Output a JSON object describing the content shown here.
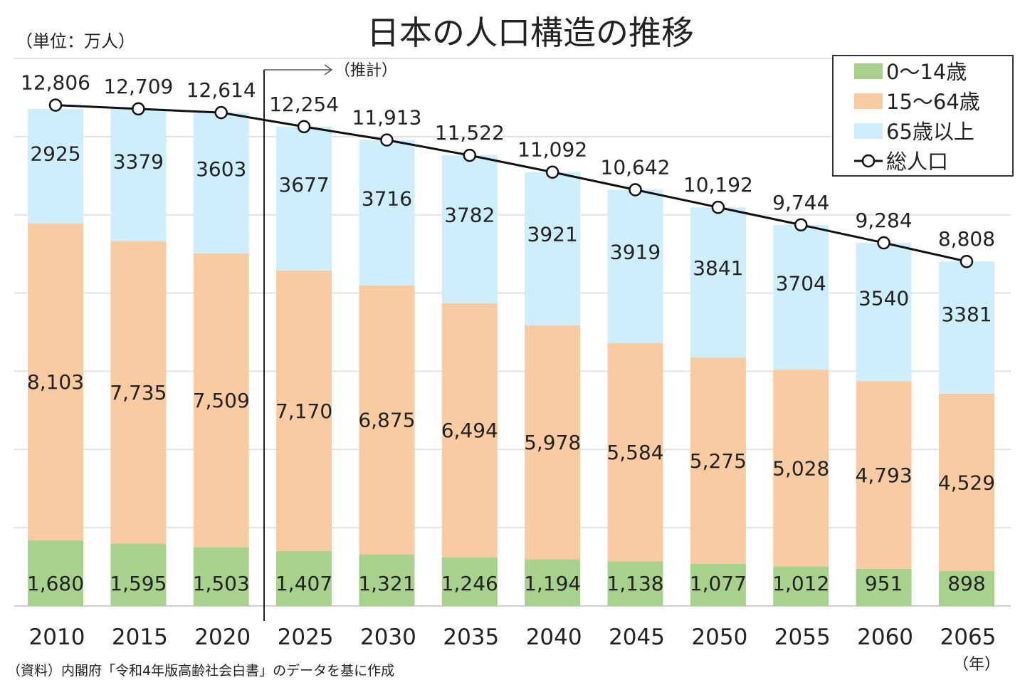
{
  "chart_data": {
    "type": "bar",
    "stacked": true,
    "title": "日本の人口構造の推移",
    "unit_label": "（単位：万人）",
    "projection_label": "（推計）",
    "projection_start": "2025",
    "xlabel": "（年）",
    "ylabel": "",
    "ylim": [
      0,
      14000
    ],
    "grid": true,
    "legend_position": "top-right",
    "categories": [
      "2010",
      "2015",
      "2020",
      "2025",
      "2030",
      "2035",
      "2040",
      "2045",
      "2050",
      "2055",
      "2060",
      "2065"
    ],
    "series": [
      {
        "name": "0～14歳",
        "color": "#a9d18e",
        "values": [
          1680,
          1595,
          1503,
          1407,
          1321,
          1246,
          1194,
          1138,
          1077,
          1012,
          951,
          898
        ],
        "labels": [
          "1,680",
          "1,595",
          "1,503",
          "1,407",
          "1,321",
          "1,246",
          "1,194",
          "1,138",
          "1,077",
          "1,012",
          "951",
          "898"
        ]
      },
      {
        "name": "15～64歳",
        "color": "#f8cba2",
        "values": [
          8103,
          7735,
          7509,
          7170,
          6875,
          6494,
          5978,
          5584,
          5275,
          5028,
          4793,
          4529
        ],
        "labels": [
          "8,103",
          "7,735",
          "7,509",
          "7,170",
          "6,875",
          "6,494",
          "5,978",
          "5,584",
          "5,275",
          "5,028",
          "4,793",
          "4,529"
        ]
      },
      {
        "name": "65歳以上",
        "color": "#cfeefc",
        "values": [
          2925,
          3379,
          3603,
          3677,
          3716,
          3782,
          3921,
          3919,
          3841,
          3704,
          3540,
          3381
        ],
        "labels": [
          "2925",
          "3379",
          "3603",
          "3677",
          "3716",
          "3782",
          "3921",
          "3919",
          "3841",
          "3704",
          "3540",
          "3381"
        ]
      }
    ],
    "total": {
      "name": "総人口",
      "type": "line",
      "color": "#111111",
      "values": [
        12806,
        12709,
        12614,
        12254,
        11913,
        11522,
        11092,
        10642,
        10192,
        9744,
        9284,
        8808
      ],
      "labels": [
        "12,806",
        "12,709",
        "12,614",
        "12,254",
        "11,913",
        "11,522",
        "11,092",
        "10,642",
        "10,192",
        "9,744",
        "9,284",
        "8,808"
      ]
    },
    "source": "（資料）内閣府「令和4年版高齢社会白書」のデータを基に作成"
  }
}
